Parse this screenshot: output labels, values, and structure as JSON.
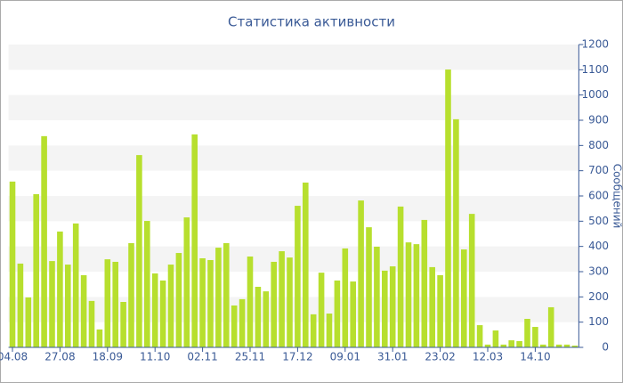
{
  "chart_data": {
    "type": "bar",
    "title": "Статистика активности",
    "y_axis_label": "Сообщений",
    "categories": [
      "04.08",
      null,
      null,
      null,
      null,
      null,
      "27.08",
      null,
      null,
      null,
      null,
      null,
      "18.09",
      null,
      null,
      null,
      null,
      null,
      "11.10",
      null,
      null,
      null,
      null,
      null,
      "02.11",
      null,
      null,
      null,
      null,
      null,
      "25.11",
      null,
      null,
      null,
      null,
      null,
      "17.12",
      null,
      null,
      null,
      null,
      null,
      "09.01",
      null,
      null,
      null,
      null,
      null,
      "31.01",
      null,
      null,
      null,
      null,
      null,
      "23.02",
      null,
      null,
      null,
      null,
      null,
      "12.03",
      null,
      null,
      null,
      null,
      null,
      "14.10",
      null,
      null,
      null,
      null,
      null
    ],
    "values": [
      657,
      332,
      198,
      607,
      837,
      342,
      459,
      328,
      491,
      286,
      184,
      71,
      349,
      339,
      180,
      413,
      762,
      501,
      293,
      265,
      328,
      374,
      515,
      844,
      353,
      346,
      395,
      413,
      166,
      191,
      360,
      240,
      222,
      339,
      381,
      356,
      561,
      653,
      131,
      296,
      134,
      265,
      392,
      261,
      582,
      476,
      399,
      304,
      321,
      558,
      416,
      409,
      505,
      318,
      286,
      1101,
      904,
      388,
      529,
      88,
      11,
      67,
      11,
      28,
      25,
      113,
      81,
      11,
      159,
      11,
      11,
      7
    ],
    "color": "#b7df2e",
    "ylim": [
      0,
      1200
    ],
    "yticks": [
      0,
      100,
      200,
      300,
      400,
      500,
      600,
      700,
      800,
      900,
      1000,
      1100,
      1200
    ],
    "y_axis_side": "right",
    "grid": "bands"
  }
}
